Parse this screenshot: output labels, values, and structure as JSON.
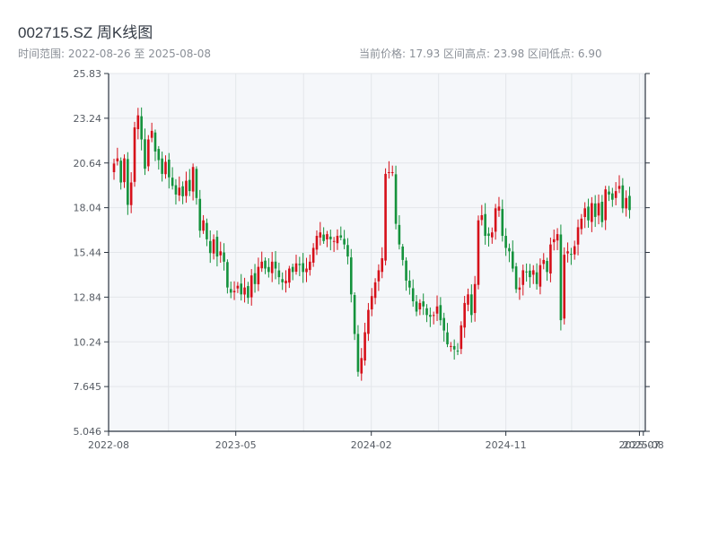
{
  "header": {
    "title": "002715.SZ 周K线图",
    "range_text": "时间范围: 2022-08-26 至 2025-08-08",
    "stats_text": "当前价格: 17.93   区间高点: 23.98   区间低点: 6.90"
  },
  "colors": {
    "up": "#d6101a",
    "down": "#14923c",
    "plot_bg": "#f5f7fa",
    "grid": "#e3e6ea",
    "axis": "#2b3440"
  },
  "chart_data": {
    "type": "candlestick",
    "title": "002715.SZ 周K线图",
    "xlabel": "",
    "ylabel": "",
    "ylim": [
      5.046,
      25.83
    ],
    "xlim": [
      "2022-08-15",
      "2025-08-12"
    ],
    "y_ticks": [
      "5.046",
      "7.645",
      "10.24",
      "12.84",
      "15.44",
      "18.04",
      "20.64",
      "23.24",
      "25.83"
    ],
    "x_ticks": [
      {
        "date": "2022-08-01",
        "label": "2022-08"
      },
      {
        "date": "2023-05-01",
        "label": "2023-05"
      },
      {
        "date": "2024-02-01",
        "label": "2024-02"
      },
      {
        "date": "2024-11-01",
        "label": "2024-11"
      },
      {
        "date": "2025-07-31",
        "label": "2025-07"
      },
      {
        "date": "2025-08-08",
        "label": "2025-08"
      }
    ],
    "grid": true,
    "start_date": "2022-08-26",
    "end_date": "2025-08-08",
    "current_price": 17.93,
    "period_high": 23.98,
    "period_low": 6.9,
    "closes": [
      20.6,
      20.9,
      19.5,
      20.9,
      18.2,
      19.5,
      22.7,
      23.4,
      22.0,
      20.3,
      22.0,
      22.5,
      21.3,
      20.8,
      20.0,
      20.7,
      19.8,
      19.3,
      18.8,
      19.2,
      18.7,
      19.6,
      19.0,
      20.4,
      18.6,
      16.7,
      17.3,
      16.2,
      15.4,
      16.2,
      15.2,
      15.5,
      14.9,
      13.4,
      13.1,
      13.2,
      13.5,
      13.0,
      13.4,
      12.8,
      14.1,
      13.6,
      14.6,
      14.9,
      14.5,
      14.3,
      14.9,
      14.5,
      14.0,
      13.7,
      13.8,
      14.5,
      14.3,
      14.8,
      14.7,
      14.3,
      14.5,
      14.9,
      15.7,
      16.4,
      16.6,
      16.1,
      16.5,
      16.2,
      16.1,
      16.4,
      16.3,
      15.9,
      15.2,
      13.0,
      10.7,
      8.5,
      9.3,
      10.8,
      12.1,
      12.9,
      13.7,
      14.4,
      15.1,
      20.0,
      20.1,
      20.1,
      17.1,
      15.9,
      15.0,
      13.8,
      13.4,
      12.6,
      12.0,
      12.5,
      12.3,
      11.8,
      11.7,
      11.8,
      12.3,
      11.5,
      10.9,
      10.1,
      10.0,
      9.8,
      9.7,
      11.2,
      12.5,
      13.0,
      11.8,
      13.6,
      17.3,
      17.6,
      16.4,
      16.4,
      16.6,
      18.0,
      18.1,
      16.4,
      15.7,
      15.5,
      14.5,
      13.3,
      13.4,
      14.4,
      14.3,
      14.0,
      14.4,
      13.6,
      14.7,
      15.0,
      14.3,
      15.9,
      16.2,
      16.5,
      11.5,
      15.3,
      15.5,
      15.3,
      15.8,
      16.9,
      17.4,
      18.0,
      17.3,
      18.3,
      17.5,
      18.3,
      17.2,
      19.1,
      18.8,
      18.5,
      19.0,
      19.3,
      18.0,
      18.6,
      17.9
    ]
  }
}
